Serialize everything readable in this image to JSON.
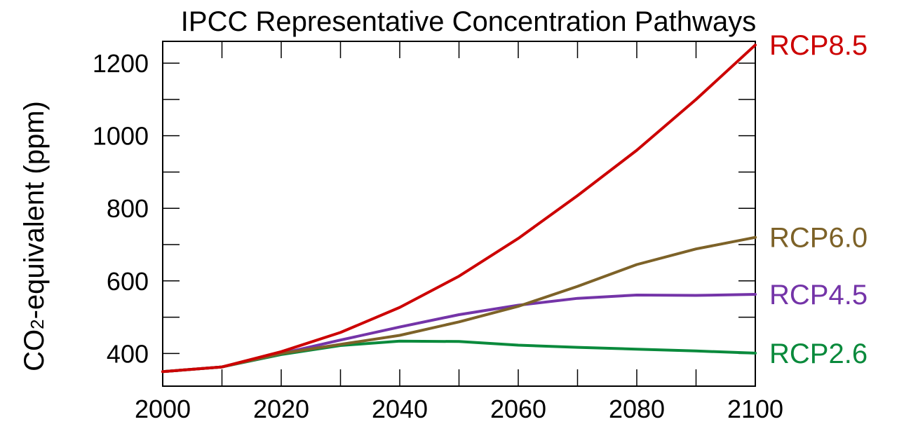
{
  "chart_data": {
    "type": "line",
    "title": "IPCC Representative Concentration Pathways",
    "xlabel": "",
    "ylabel_main": "CO",
    "ylabel_sub": "2",
    "ylabel_rest": "-equivalent (ppm)",
    "xlim": [
      2000,
      2100
    ],
    "ylim": [
      310,
      1260
    ],
    "x_ticks": [
      2000,
      2020,
      2040,
      2060,
      2080,
      2100
    ],
    "x_minor_ticks": [
      2010,
      2030,
      2050,
      2070,
      2090
    ],
    "y_ticks": [
      400,
      600,
      800,
      1000,
      1200
    ],
    "y_minor_ticks": [
      500,
      700,
      900,
      1100
    ],
    "grid": false,
    "legend": "right-end labels",
    "series": [
      {
        "name": "RCP8.5",
        "color": "#cc0000",
        "x": [
          2000,
          2010,
          2020,
          2030,
          2040,
          2050,
          2060,
          2070,
          2080,
          2090,
          2100
        ],
        "values": [
          350,
          363,
          405,
          458,
          527,
          613,
          717,
          835,
          960,
          1100,
          1250
        ]
      },
      {
        "name": "RCP6.0",
        "color": "#7d6228",
        "x": [
          2000,
          2010,
          2020,
          2030,
          2040,
          2050,
          2060,
          2070,
          2080,
          2090,
          2100
        ],
        "values": [
          350,
          363,
          400,
          425,
          450,
          487,
          530,
          585,
          645,
          688,
          720
        ]
      },
      {
        "name": "RCP4.5",
        "color": "#7434a8",
        "x": [
          2000,
          2010,
          2020,
          2030,
          2040,
          2050,
          2060,
          2070,
          2080,
          2090,
          2100
        ],
        "values": [
          350,
          363,
          400,
          437,
          473,
          507,
          533,
          552,
          561,
          560,
          563
        ]
      },
      {
        "name": "RCP2.6",
        "color": "#0a8a3c",
        "x": [
          2000,
          2010,
          2020,
          2030,
          2040,
          2050,
          2060,
          2070,
          2080,
          2090,
          2100
        ],
        "values": [
          350,
          363,
          397,
          422,
          434,
          433,
          423,
          417,
          412,
          407,
          401
        ]
      }
    ]
  }
}
